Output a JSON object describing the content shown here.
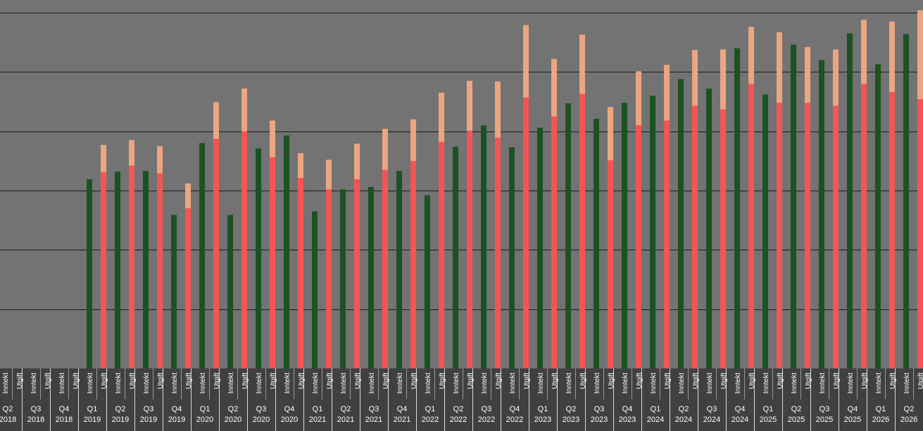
{
  "chart_data": {
    "type": "bar",
    "stacked": true,
    "title": "",
    "xlabel": "",
    "ylabel": "",
    "grid": true,
    "legend": "none",
    "ylim": [
      0,
      6.15
    ],
    "sub_labels": [
      "Inntekt",
      "Utgift"
    ],
    "categories": [
      {
        "q": "Q2",
        "y": "2018"
      },
      {
        "q": "Q3",
        "y": "2018"
      },
      {
        "q": "Q4",
        "y": "2018"
      },
      {
        "q": "Q1",
        "y": "2019"
      },
      {
        "q": "Q2",
        "y": "2019"
      },
      {
        "q": "Q3",
        "y": "2019"
      },
      {
        "q": "Q4",
        "y": "2019"
      },
      {
        "q": "Q1",
        "y": "2020"
      },
      {
        "q": "Q2",
        "y": "2020"
      },
      {
        "q": "Q3",
        "y": "2020"
      },
      {
        "q": "Q4",
        "y": "2020"
      },
      {
        "q": "Q1",
        "y": "2021"
      },
      {
        "q": "Q2",
        "y": "2021"
      },
      {
        "q": "Q3",
        "y": "2021"
      },
      {
        "q": "Q4",
        "y": "2021"
      },
      {
        "q": "Q1",
        "y": "2022"
      },
      {
        "q": "Q2",
        "y": "2022"
      },
      {
        "q": "Q3",
        "y": "2022"
      },
      {
        "q": "Q4",
        "y": "2022"
      },
      {
        "q": "Q1",
        "y": "2023"
      },
      {
        "q": "Q2",
        "y": "2023"
      },
      {
        "q": "Q3",
        "y": "2023"
      },
      {
        "q": "Q4",
        "y": "2023"
      },
      {
        "q": "Q1",
        "y": "2024"
      },
      {
        "q": "Q2",
        "y": "2024"
      },
      {
        "q": "Q3",
        "y": "2024"
      },
      {
        "q": "Q4",
        "y": "2024"
      },
      {
        "q": "Q1",
        "y": "2025"
      },
      {
        "q": "Q2",
        "y": "2025"
      },
      {
        "q": "Q3",
        "y": "2025"
      },
      {
        "q": "Q4",
        "y": "2025"
      },
      {
        "q": "Q1",
        "y": "2026"
      },
      {
        "q": "Q2",
        "y": "2026"
      }
    ],
    "inntekt": [
      0,
      0,
      0,
      3.19,
      3.32,
      3.33,
      2.59,
      3.8,
      2.59,
      3.71,
      3.93,
      2.65,
      3.02,
      3.06,
      3.33,
      2.92,
      3.74,
      4.1,
      3.73,
      4.06,
      4.47,
      4.21,
      4.48,
      4.6,
      4.88,
      4.72,
      5.4,
      4.62,
      5.46,
      5.2,
      5.65,
      5.13,
      5.64
    ],
    "utgift_base": [
      0,
      0,
      0,
      3.31,
      3.42,
      3.29,
      2.7,
      3.87,
      4.0,
      3.56,
      3.21,
      3.02,
      3.19,
      3.35,
      3.5,
      3.82,
      4.01,
      3.89,
      4.57,
      4.25,
      4.63,
      3.51,
      4.1,
      4.18,
      4.43,
      4.37,
      4.8,
      4.48,
      4.48,
      4.43,
      4.8,
      4.66,
      4.54
    ],
    "utgift_extra": [
      0,
      0,
      0,
      0.46,
      0.43,
      0.46,
      0.42,
      0.62,
      0.72,
      0.62,
      0.42,
      0.5,
      0.6,
      0.69,
      0.7,
      0.83,
      0.84,
      0.95,
      1.22,
      0.97,
      1.0,
      0.9,
      0.91,
      0.94,
      0.94,
      1.01,
      0.96,
      1.19,
      0.94,
      0.95,
      1.08,
      1.19,
      1.5
    ],
    "colors": {
      "background": "#737373",
      "inntekt": "#1c5223",
      "utgift_base": "#f55454",
      "utgift_extra": "#eba681",
      "gridline": "#1a1a1a",
      "axis_band": "#404040",
      "label": "#ffffff"
    }
  }
}
